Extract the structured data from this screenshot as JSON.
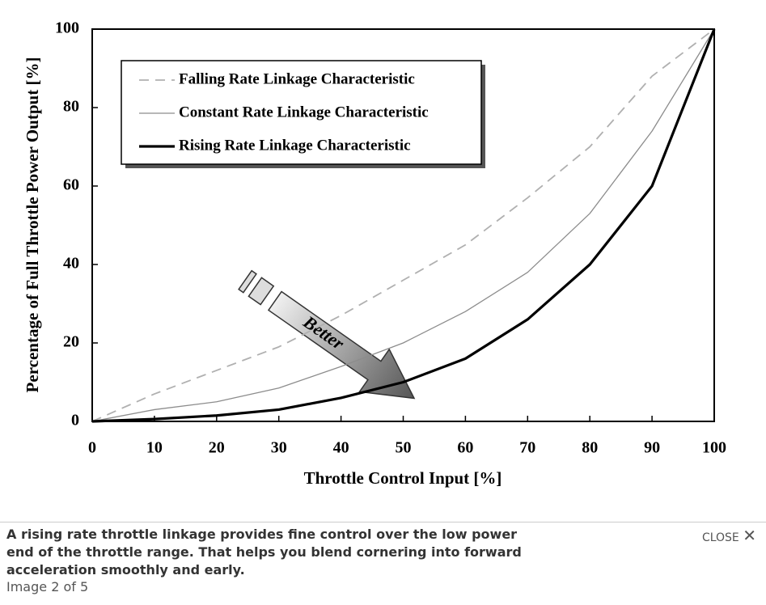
{
  "chart_data": {
    "type": "line",
    "x_label": "Throttle Control Input [%]",
    "y_label": "Percentage of Full Throttle Power Output [%]",
    "annotation": "Better",
    "x": [
      0,
      10,
      20,
      30,
      40,
      50,
      60,
      70,
      80,
      90,
      100
    ],
    "series": [
      {
        "name": "Falling Rate Linkage Characteristic",
        "color": "#b0b0b0",
        "style": "dashed",
        "values": [
          0,
          7,
          13,
          19,
          27,
          36,
          45,
          57,
          70,
          88,
          100
        ]
      },
      {
        "name": "Constant Rate Linkage Characteristic",
        "color": "#8c8c8c",
        "style": "solid",
        "values": [
          0,
          3,
          5,
          8.5,
          14,
          20,
          28,
          38,
          53,
          74,
          100
        ]
      },
      {
        "name": "Rising Rate Linkage Characteristic",
        "color": "#000000",
        "style": "thick",
        "values": [
          0,
          0.6,
          1.5,
          3,
          6,
          10,
          16,
          26,
          40,
          60,
          100
        ]
      }
    ],
    "xlim": [
      0,
      100
    ],
    "xticks": [
      0,
      10,
      20,
      30,
      40,
      50,
      60,
      70,
      80,
      90,
      100
    ],
    "ylim": [
      0,
      100
    ],
    "yticks": [
      0,
      20,
      40,
      60,
      80,
      100
    ],
    "legend": "upper left",
    "grid": false
  },
  "caption": {
    "text": "A rising rate throttle linkage provides fine control over the low power end of the throttle range. That helps you blend cornering into forward acceleration smoothly and early.",
    "counter": "Image 2 of 5",
    "close": "CLOSE"
  }
}
